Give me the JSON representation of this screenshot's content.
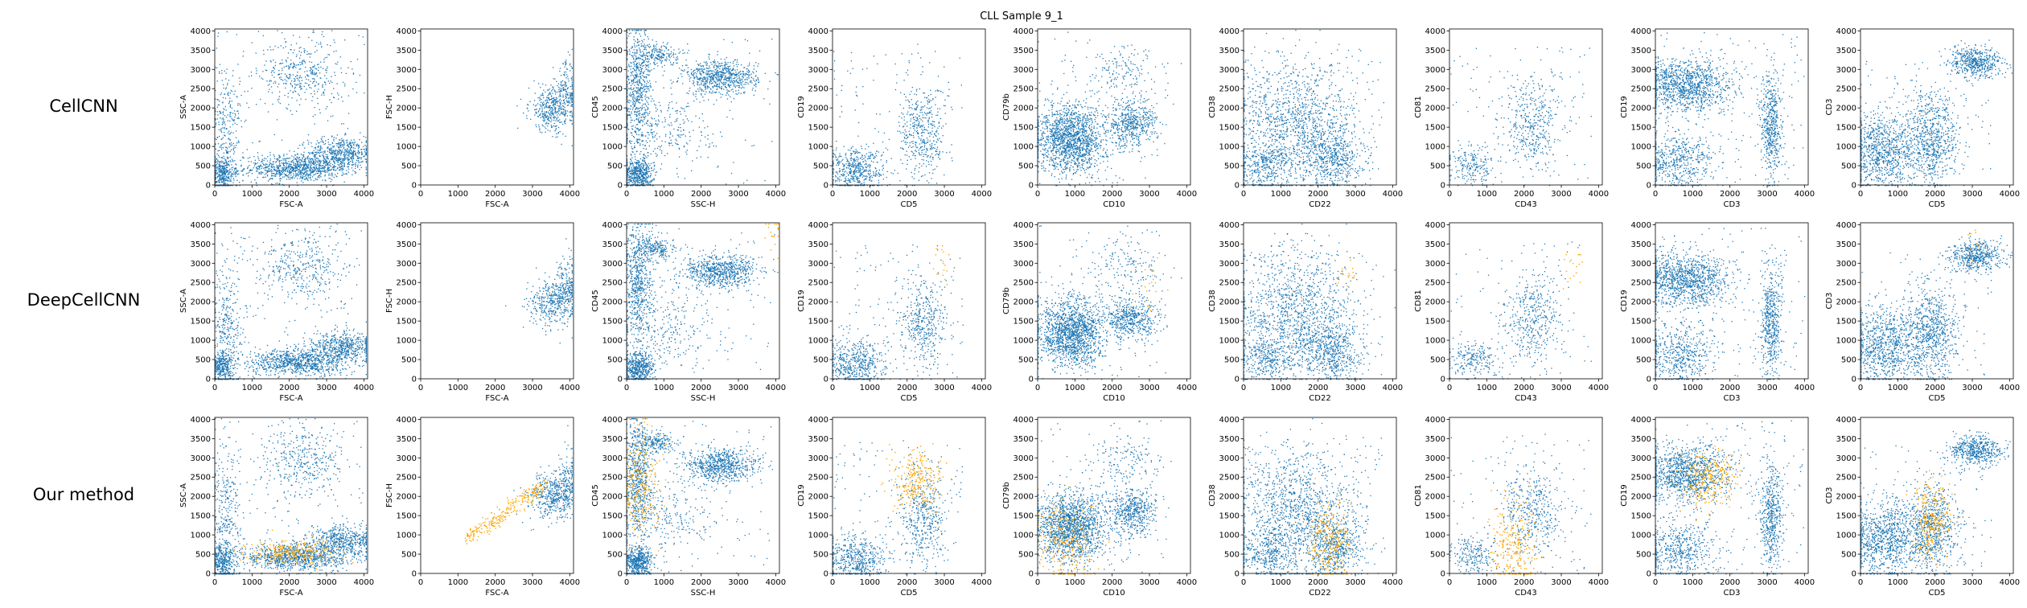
{
  "chart_data": {
    "type": "scatter",
    "title": "CLL Sample 9_1",
    "rows": [
      {
        "label": "CellCNN",
        "highlight": "none"
      },
      {
        "label": "DeepCellCNN",
        "highlight": "sparse"
      },
      {
        "label": "Our method",
        "highlight": "dense"
      }
    ],
    "panels": [
      {
        "xlabel": "FSC-A",
        "ylabel": "SSC-A"
      },
      {
        "xlabel": "FSC-A",
        "ylabel": "FSC-H"
      },
      {
        "xlabel": "SSC-H",
        "ylabel": "CD45"
      },
      {
        "xlabel": "CD5",
        "ylabel": "CD19"
      },
      {
        "xlabel": "CD10",
        "ylabel": "CD79b"
      },
      {
        "xlabel": "CD22",
        "ylabel": "CD38"
      },
      {
        "xlabel": "CD43",
        "ylabel": "CD81"
      },
      {
        "xlabel": "CD3",
        "ylabel": "CD19"
      },
      {
        "xlabel": "CD5",
        "ylabel": "CD3"
      }
    ],
    "xlim": [
      0,
      4100
    ],
    "ylim": [
      0,
      4050
    ],
    "xticks": [
      0,
      1000,
      2000,
      3000,
      4000
    ],
    "yticks": [
      0,
      500,
      1000,
      1500,
      2000,
      2500,
      3000,
      3500,
      4000
    ],
    "colors": {
      "population": "#1f77b4",
      "highlighted": "#ffa500"
    }
  }
}
